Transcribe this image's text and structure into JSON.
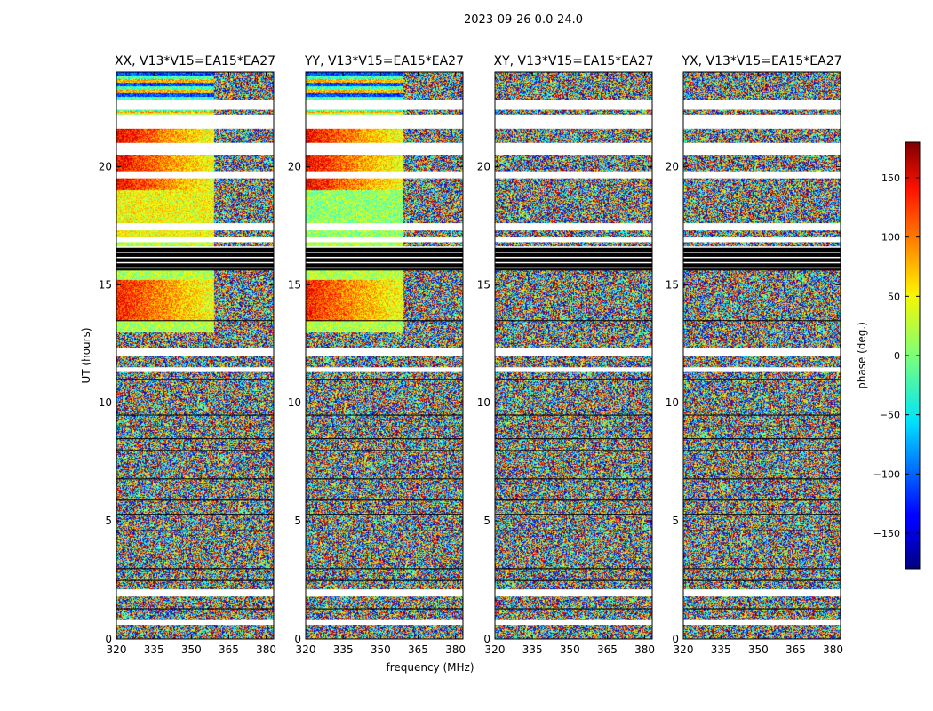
{
  "figure": {
    "suptitle": "2023-09-26 0.0-24.0"
  },
  "chart_data": {
    "type": "heatmap",
    "ylabel": "UT (hours)",
    "xlabel": "frequency (MHz)",
    "xlim": [
      320,
      383
    ],
    "ylim": [
      0,
      24
    ],
    "x_ticks": [
      320,
      335,
      350,
      365,
      380
    ],
    "y_ticks": [
      0,
      5,
      10,
      15,
      20
    ],
    "panels": [
      {
        "title": "XX, V13*V15=EA15*EA27",
        "coherent_phase": true
      },
      {
        "title": "YY, V13*V15=EA15*EA27",
        "coherent_phase": true
      },
      {
        "title": "XY, V13*V15=EA15*EA27",
        "coherent_phase": false
      },
      {
        "title": "YX, V13*V15=EA15*EA27",
        "coherent_phase": false
      }
    ],
    "colorbar": {
      "label": "phase (deg.)",
      "range": [
        -180,
        180
      ],
      "ticks": [
        -150,
        -100,
        -50,
        0,
        50,
        100,
        150
      ],
      "colormap": "jet"
    },
    "blank_rows_hours": [
      [
        0.6,
        0.8
      ],
      [
        1.8,
        2.1
      ],
      [
        11.3,
        11.5
      ],
      [
        12.0,
        12.3
      ],
      [
        16.8,
        17.0
      ],
      [
        17.3,
        17.6
      ],
      [
        19.5,
        19.8
      ],
      [
        20.5,
        21.0
      ],
      [
        21.6,
        22.2
      ],
      [
        22.4,
        22.8
      ]
    ],
    "flagged_rows_hours": [
      [
        15.6,
        16.6
      ]
    ]
  }
}
